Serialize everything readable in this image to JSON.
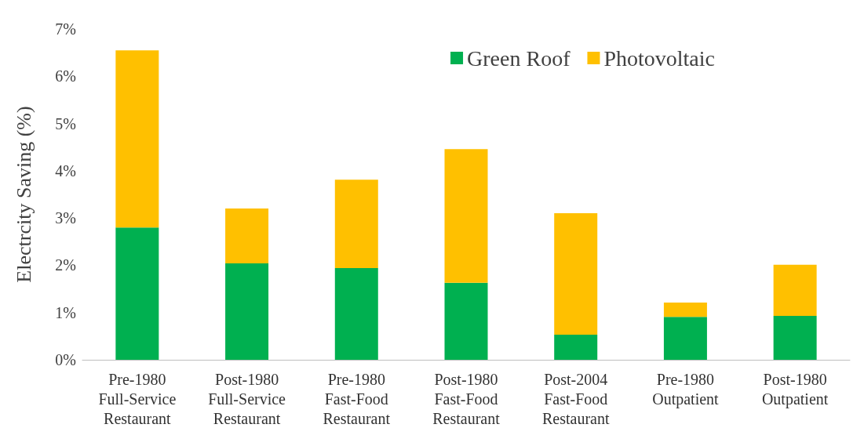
{
  "chart_data": {
    "type": "bar",
    "stacked": true,
    "ylabel": "Electrcity Saving (%)",
    "categories": [
      "Pre-1980\nFull-Service\nRestaurant",
      "Post-1980\nFull-Service\nRestaurant",
      "Pre-1980\nFast-Food\nRestaurant",
      "Post-1980\nFast-Food\nRestaurant",
      "Post-2004\nFast-Food\nRestaurant",
      "Pre-1980\nOutpatient",
      "Post-1980\nOutpatient"
    ],
    "series": [
      {
        "name": "Green Roof",
        "color": "#00b050",
        "values": [
          2.8,
          2.04,
          1.94,
          1.63,
          0.53,
          0.91,
          0.93
        ]
      },
      {
        "name": "Photovoltaic",
        "color": "#ffc000",
        "values": [
          3.75,
          1.16,
          1.87,
          2.83,
          2.57,
          0.3,
          1.08
        ]
      }
    ],
    "ylim": [
      0,
      7
    ],
    "yticks": [
      {
        "value": 0,
        "label": "0%"
      },
      {
        "value": 1,
        "label": "1%"
      },
      {
        "value": 2,
        "label": "2%"
      },
      {
        "value": 3,
        "label": "3%"
      },
      {
        "value": 4,
        "label": "4%"
      },
      {
        "value": 5,
        "label": "5%"
      },
      {
        "value": 6,
        "label": "6%"
      },
      {
        "value": 7,
        "label": "7%"
      }
    ],
    "grid": false,
    "legend": "top right"
  }
}
